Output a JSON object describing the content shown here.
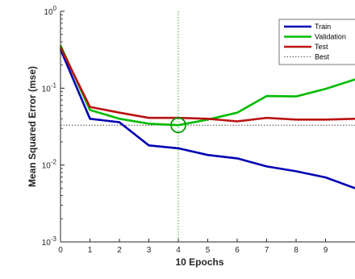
{
  "chart_data": {
    "type": "line",
    "xlabel": "10 Epochs",
    "ylabel": "Mean Squared Error  (mse)",
    "y_scale": "log",
    "xlim": [
      0,
      10
    ],
    "ylim": [
      0.001,
      1
    ],
    "x_ticks": [
      "0",
      "1",
      "2",
      "3",
      "4",
      "5",
      "6",
      "7",
      "8",
      "9"
    ],
    "y_ticks": [
      {
        "value": 1,
        "base": "10",
        "exp": "0"
      },
      {
        "value": 0.1,
        "base": "10",
        "exp": "-1"
      },
      {
        "value": 0.01,
        "base": "10",
        "exp": "-2"
      },
      {
        "value": 0.001,
        "base": "10",
        "exp": "-3"
      }
    ],
    "x": [
      0,
      1,
      2,
      3,
      4,
      5,
      6,
      7,
      8,
      9,
      10
    ],
    "series": [
      {
        "name": "Train",
        "color": "#0000b3",
        "values": [
          0.32,
          0.04,
          0.036,
          0.018,
          0.0165,
          0.0135,
          0.0122,
          0.0096,
          0.0083,
          0.0069,
          0.005
        ]
      },
      {
        "name": "Validation",
        "color": "#00bb00",
        "values": [
          0.36,
          0.052,
          0.04,
          0.0345,
          0.033,
          0.039,
          0.048,
          0.079,
          0.078,
          0.098,
          0.13
        ]
      },
      {
        "name": "Test",
        "color": "#bb1111",
        "values": [
          0.34,
          0.057,
          0.048,
          0.041,
          0.041,
          0.04,
          0.037,
          0.041,
          0.039,
          0.039,
          0.04
        ]
      }
    ],
    "best": {
      "label": "Best",
      "epoch": 4,
      "value": 0.033,
      "color": "#00aa00"
    },
    "legend_position": "top-right",
    "grid": false
  }
}
